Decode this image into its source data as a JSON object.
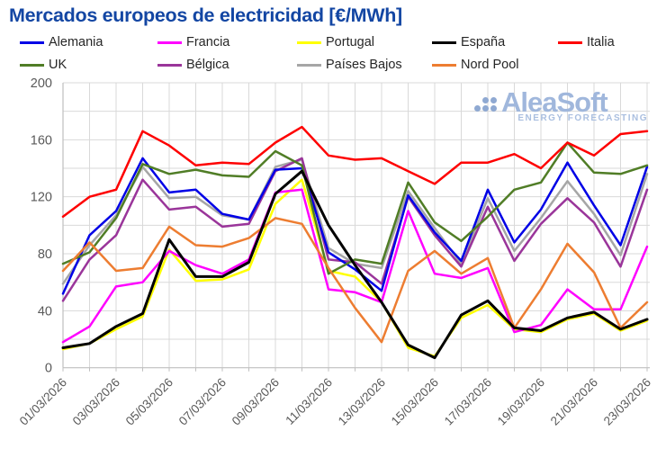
{
  "header": {
    "title": "Mercados europeos de electricidad [€/MWh]"
  },
  "logo": {
    "name": "AleaSoft",
    "tagline": "ENERGY FORECASTING",
    "color": "#a0b7dc"
  },
  "axis_colors": {
    "grid": "#d9d9d9",
    "axis_line": "#bfbfbf",
    "tick_text": "#595959"
  },
  "chart_data": {
    "type": "line",
    "title": "Mercados europeos de electricidad [€/MWh]",
    "xlabel": "",
    "ylabel": "",
    "unit": "€/MWh",
    "ylim": [
      0,
      200
    ],
    "y_ticks": [
      0,
      40,
      80,
      120,
      160,
      200
    ],
    "y_grid_step": 20,
    "grid": true,
    "legend_position": "top",
    "x_labeled_every": 2,
    "x": [
      "01/03/2026",
      "02/03/2026",
      "03/03/2026",
      "04/03/2026",
      "05/03/2026",
      "06/03/2026",
      "07/03/2026",
      "08/03/2026",
      "09/03/2026",
      "10/03/2026",
      "11/03/2026",
      "12/03/2026",
      "13/03/2026",
      "14/03/2026",
      "15/03/2026",
      "16/03/2026",
      "17/03/2026",
      "18/03/2026",
      "19/03/2026",
      "20/03/2026",
      "21/03/2026",
      "22/03/2026",
      "23/03/2026"
    ],
    "series": [
      {
        "name": "Alemania",
        "color": "#0000e6",
        "values": [
          52,
          93,
          110,
          147,
          123,
          125,
          108,
          104,
          139,
          140,
          81,
          69,
          54,
          121,
          95,
          75,
          125,
          88,
          111,
          144,
          114,
          86,
          141
        ]
      },
      {
        "name": "Francia",
        "color": "#ff00ff",
        "values": [
          18,
          29,
          57,
          60,
          82,
          72,
          66,
          76,
          123,
          125,
          55,
          53,
          46,
          110,
          66,
          63,
          70,
          25,
          30,
          55,
          41,
          41,
          85
        ]
      },
      {
        "name": "Portugal",
        "color": "#ffff00",
        "values": [
          13,
          17,
          27,
          36,
          83,
          61,
          62,
          69,
          115,
          132,
          68,
          64,
          46,
          14,
          8,
          35,
          44,
          27,
          25,
          34,
          38,
          26,
          33
        ]
      },
      {
        "name": "España",
        "color": "#000000",
        "values": [
          14,
          17,
          29,
          38,
          90,
          64,
          64,
          74,
          122,
          138,
          100,
          72,
          46,
          16,
          7,
          37,
          47,
          28,
          26,
          35,
          39,
          27,
          34
        ]
      },
      {
        "name": "Italia",
        "color": "#fe0000",
        "values": [
          106,
          120,
          125,
          166,
          156,
          142,
          144,
          143,
          158,
          169,
          149,
          146,
          147,
          138,
          129,
          144,
          144,
          150,
          140,
          158,
          149,
          164,
          166
        ]
      },
      {
        "name": "UK",
        "color": "#507d26",
        "values": [
          73,
          81,
          105,
          143,
          136,
          139,
          135,
          134,
          152,
          142,
          66,
          76,
          73,
          130,
          102,
          89,
          106,
          125,
          130,
          158,
          137,
          136,
          142
        ]
      },
      {
        "name": "Bélgica",
        "color": "#9a359a",
        "values": [
          47,
          76,
          93,
          132,
          111,
          113,
          99,
          101,
          138,
          147,
          76,
          74,
          59,
          120,
          93,
          71,
          113,
          75,
          101,
          119,
          102,
          71,
          125
        ]
      },
      {
        "name": "Países Bajos",
        "color": "#a6a6a6",
        "values": [
          59,
          86,
          107,
          141,
          119,
          120,
          107,
          104,
          141,
          146,
          84,
          73,
          70,
          124,
          98,
          73,
          119,
          82,
          105,
          131,
          108,
          79,
          136
        ]
      },
      {
        "name": "Nord Pool",
        "color": "#ed7d31",
        "values": [
          68,
          88,
          68,
          70,
          99,
          86,
          85,
          91,
          105,
          101,
          70,
          42,
          18,
          68,
          82,
          66,
          77,
          28,
          55,
          87,
          67,
          28,
          46
        ]
      }
    ]
  }
}
